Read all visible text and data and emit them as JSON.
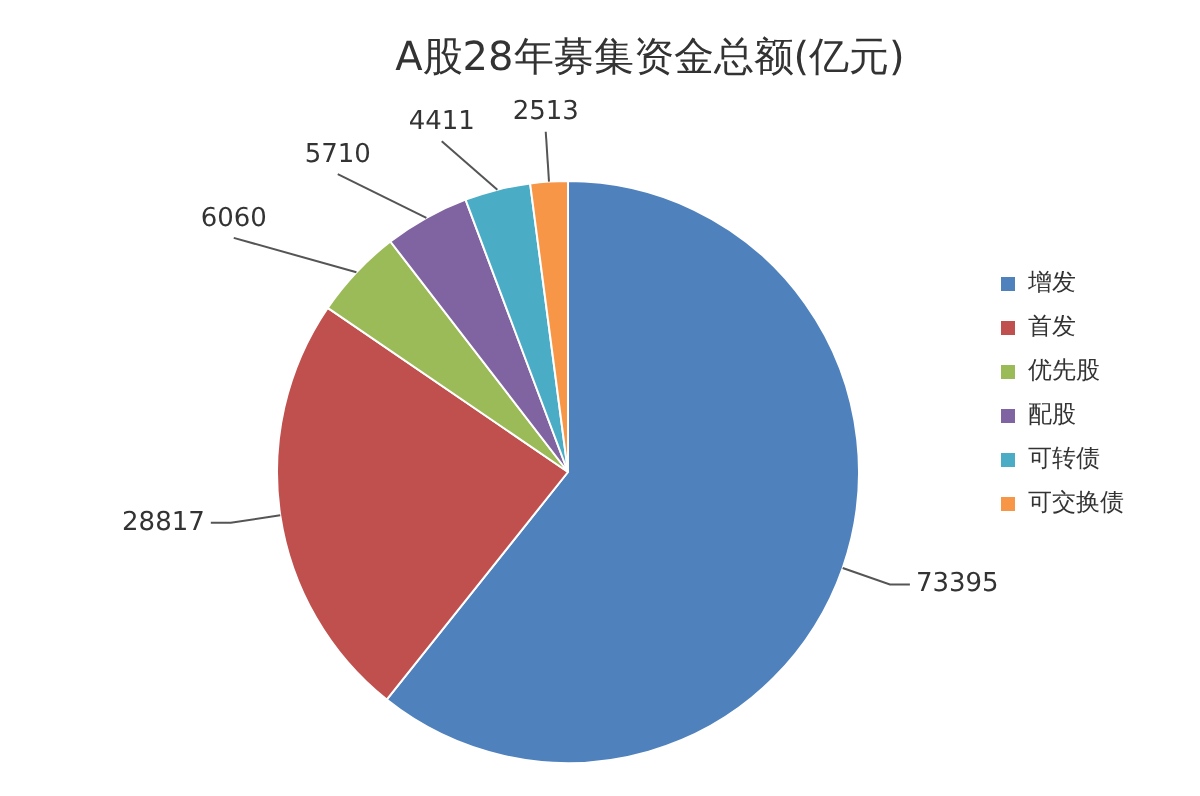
{
  "chart_data": {
    "type": "pie",
    "title": "A股28年募集资金总额(亿元)",
    "categories": [
      "增发",
      "首发",
      "优先股",
      "配股",
      "可转债",
      "可交换债"
    ],
    "values": [
      73395,
      28817,
      6060,
      5710,
      4411,
      2513
    ],
    "colors": [
      "#4f81bd",
      "#c0504d",
      "#9bbb59",
      "#8064a2",
      "#4bacc6",
      "#f79646"
    ],
    "data_labels": true,
    "legend": "right"
  }
}
